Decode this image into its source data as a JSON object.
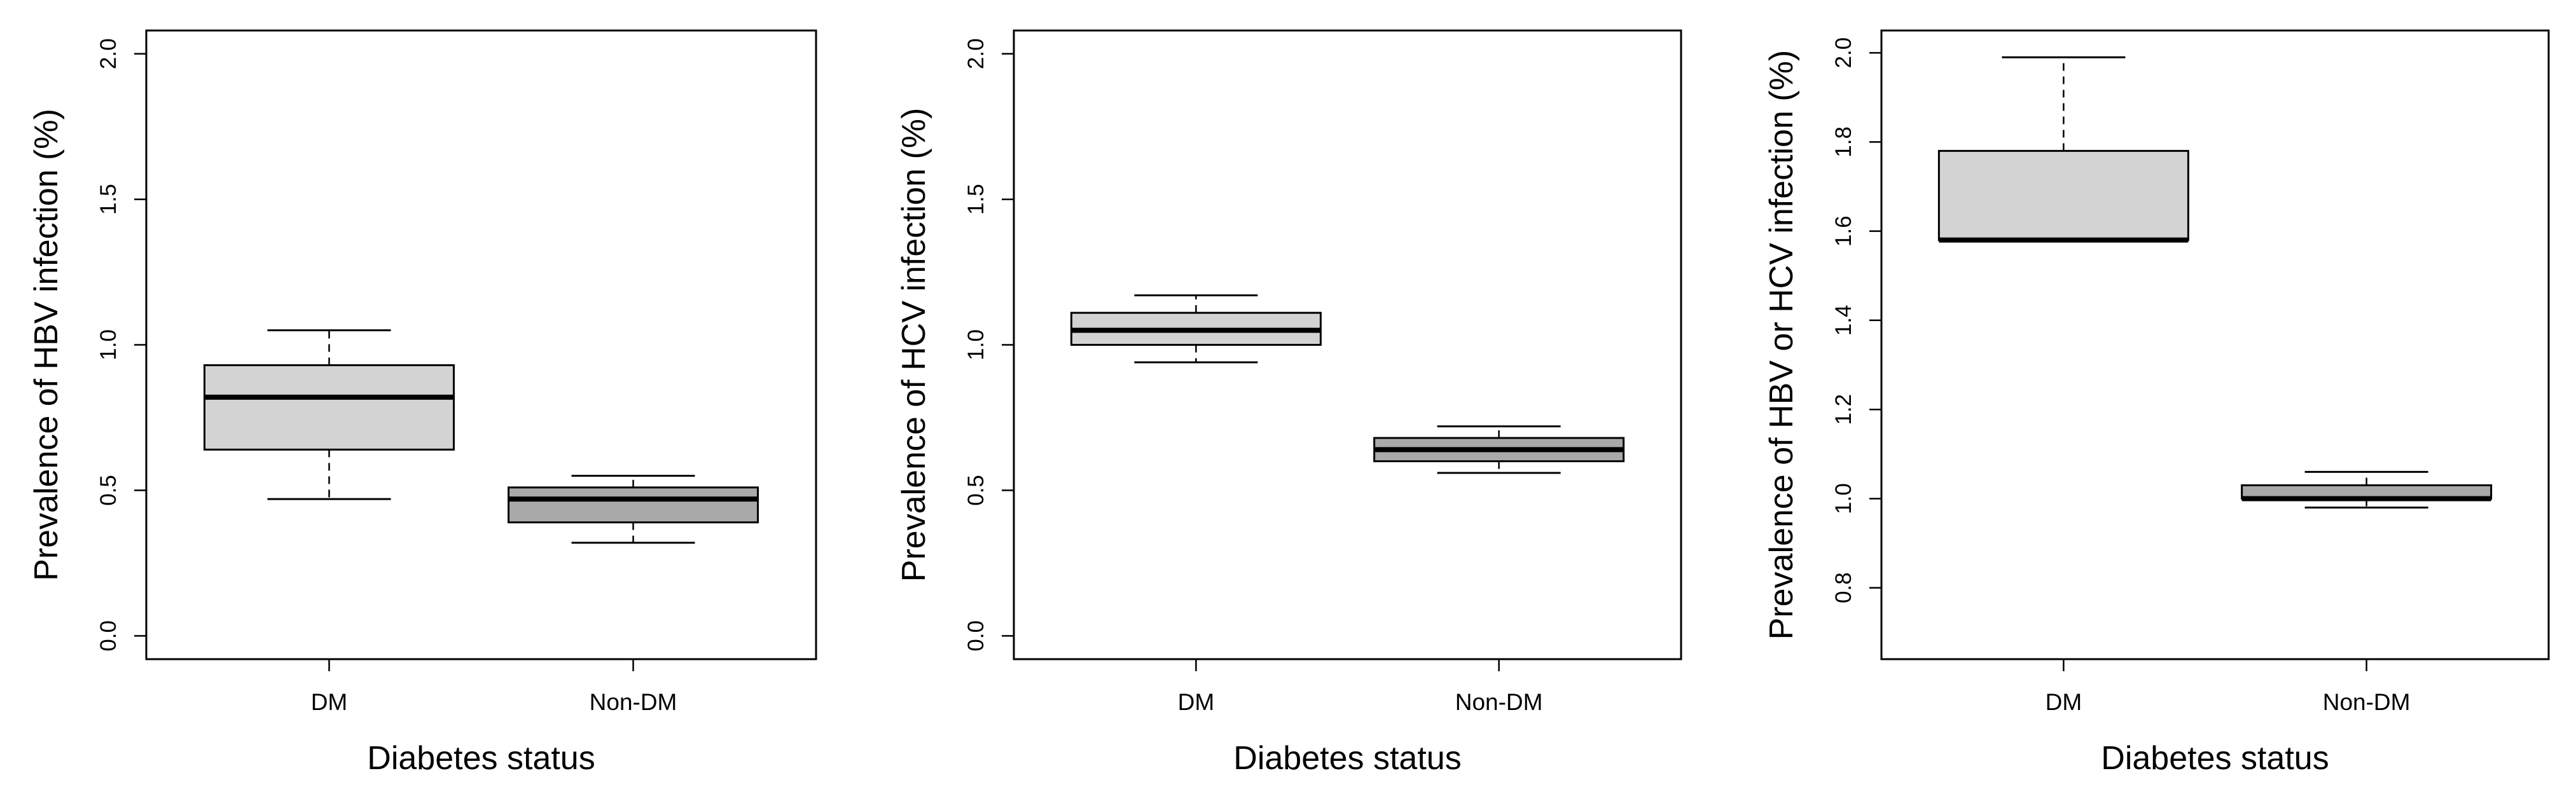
{
  "chart_data": [
    {
      "type": "boxplot",
      "title": "",
      "xlabel": "Diabetes status",
      "ylabel": "Prevalence of HBV infection (%)",
      "categories": [
        "DM",
        "Non-DM"
      ],
      "ylim": [
        -0.08,
        2.08
      ],
      "yticks": [
        0.0,
        0.5,
        1.0,
        1.5,
        2.0
      ],
      "ytick_labels": [
        "0.0",
        "0.5",
        "1.0",
        "1.5",
        "2.0"
      ],
      "boxes": [
        {
          "category": "DM",
          "whisker_low": 0.47,
          "q1": 0.64,
          "median": 0.82,
          "q3": 0.93,
          "whisker_high": 1.05,
          "fill": "#d3d3d3"
        },
        {
          "category": "Non-DM",
          "whisker_low": 0.32,
          "q1": 0.39,
          "median": 0.47,
          "q3": 0.51,
          "whisker_high": 0.55,
          "fill": "#a9a9a9"
        }
      ]
    },
    {
      "type": "boxplot",
      "title": "",
      "xlabel": "Diabetes status",
      "ylabel": "Prevalence of HCV infection (%)",
      "categories": [
        "DM",
        "Non-DM"
      ],
      "ylim": [
        -0.08,
        2.08
      ],
      "yticks": [
        0.0,
        0.5,
        1.0,
        1.5,
        2.0
      ],
      "ytick_labels": [
        "0.0",
        "0.5",
        "1.0",
        "1.5",
        "2.0"
      ],
      "boxes": [
        {
          "category": "DM",
          "whisker_low": 0.94,
          "q1": 1.0,
          "median": 1.05,
          "q3": 1.11,
          "whisker_high": 1.17,
          "fill": "#d3d3d3"
        },
        {
          "category": "Non-DM",
          "whisker_low": 0.56,
          "q1": 0.6,
          "median": 0.64,
          "q3": 0.68,
          "whisker_high": 0.72,
          "fill": "#a9a9a9"
        }
      ]
    },
    {
      "type": "boxplot",
      "title": "",
      "xlabel": "Diabetes status",
      "ylabel": "Prevalence of HBV or HCV infection (%)",
      "categories": [
        "DM",
        "Non-DM"
      ],
      "ylim": [
        0.64,
        2.05
      ],
      "yticks": [
        0.8,
        1.0,
        1.2,
        1.4,
        1.6,
        1.8,
        2.0
      ],
      "ytick_labels": [
        "0.8",
        "1.0",
        "1.2",
        "1.4",
        "1.6",
        "1.8",
        "2.0"
      ],
      "boxes": [
        {
          "category": "DM",
          "whisker_low": 1.58,
          "q1": 1.58,
          "median": 1.58,
          "q3": 1.78,
          "whisker_high": 1.99,
          "fill": "#d3d3d3"
        },
        {
          "category": "Non-DM",
          "whisker_low": 0.98,
          "q1": 1.0,
          "median": 1.0,
          "q3": 1.03,
          "whisker_high": 1.06,
          "fill": "#a9a9a9"
        }
      ]
    }
  ]
}
